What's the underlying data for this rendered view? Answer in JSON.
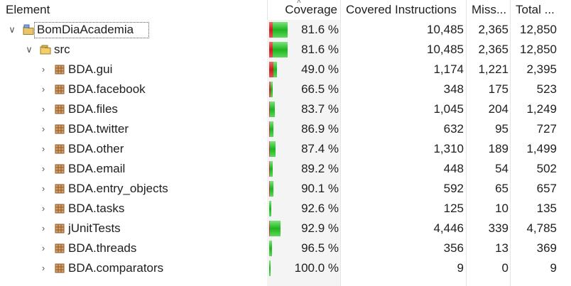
{
  "columns": {
    "element": "Element",
    "coverage": "Coverage",
    "covered": "Covered Instructions",
    "missed": "Miss...",
    "total": "Total ..."
  },
  "rows": [
    {
      "name": "BomDiaAcademia",
      "type": "project",
      "level": 0,
      "expanded": true,
      "selected": true,
      "coverage": "81.6 %",
      "coverage_value": 81.6,
      "covered": "10,485",
      "missed": "2,365",
      "total": "12,850"
    },
    {
      "name": "src",
      "type": "folder",
      "level": 1,
      "expanded": true,
      "coverage": "81.6 %",
      "coverage_value": 81.6,
      "covered": "10,485",
      "missed": "2,365",
      "total": "12,850"
    },
    {
      "name": "BDA.gui",
      "type": "package",
      "level": 2,
      "coverage": "49.0 %",
      "coverage_value": 49.0,
      "covered": "1,174",
      "missed": "1,221",
      "total": "2,395"
    },
    {
      "name": "BDA.facebook",
      "type": "package",
      "level": 2,
      "coverage": "66.5 %",
      "coverage_value": 66.5,
      "covered": "348",
      "missed": "175",
      "total": "523"
    },
    {
      "name": "BDA.files",
      "type": "package",
      "level": 2,
      "coverage": "83.7 %",
      "coverage_value": 83.7,
      "covered": "1,045",
      "missed": "204",
      "total": "1,249"
    },
    {
      "name": "BDA.twitter",
      "type": "package",
      "level": 2,
      "coverage": "86.9 %",
      "coverage_value": 86.9,
      "covered": "632",
      "missed": "95",
      "total": "727"
    },
    {
      "name": "BDA.other",
      "type": "package",
      "level": 2,
      "coverage": "87.4 %",
      "coverage_value": 87.4,
      "covered": "1,310",
      "missed": "189",
      "total": "1,499"
    },
    {
      "name": "BDA.email",
      "type": "package",
      "level": 2,
      "coverage": "89.2 %",
      "coverage_value": 89.2,
      "covered": "448",
      "missed": "54",
      "total": "502"
    },
    {
      "name": "BDA.entry_objects",
      "type": "package",
      "level": 2,
      "coverage": "90.1 %",
      "coverage_value": 90.1,
      "covered": "592",
      "missed": "65",
      "total": "657"
    },
    {
      "name": "BDA.tasks",
      "type": "package",
      "level": 2,
      "coverage": "92.6 %",
      "coverage_value": 92.6,
      "covered": "125",
      "missed": "10",
      "total": "135"
    },
    {
      "name": "jUnitTests",
      "type": "package",
      "level": 2,
      "coverage": "92.9 %",
      "coverage_value": 92.9,
      "covered": "4,446",
      "missed": "339",
      "total": "4,785"
    },
    {
      "name": "BDA.threads",
      "type": "package",
      "level": 2,
      "coverage": "96.5 %",
      "coverage_value": 96.5,
      "covered": "356",
      "missed": "13",
      "total": "369"
    },
    {
      "name": "BDA.comparators",
      "type": "package",
      "level": 2,
      "coverage": "100.0 %",
      "coverage_value": 100.0,
      "covered": "9",
      "missed": "0",
      "total": "9"
    }
  ],
  "colors": {
    "covered_bar": "#1fb51f",
    "missed_bar": "#c81e1e",
    "column_bg": "#f4f4f4"
  },
  "sort": {
    "column": "coverage",
    "direction": "ascending"
  }
}
